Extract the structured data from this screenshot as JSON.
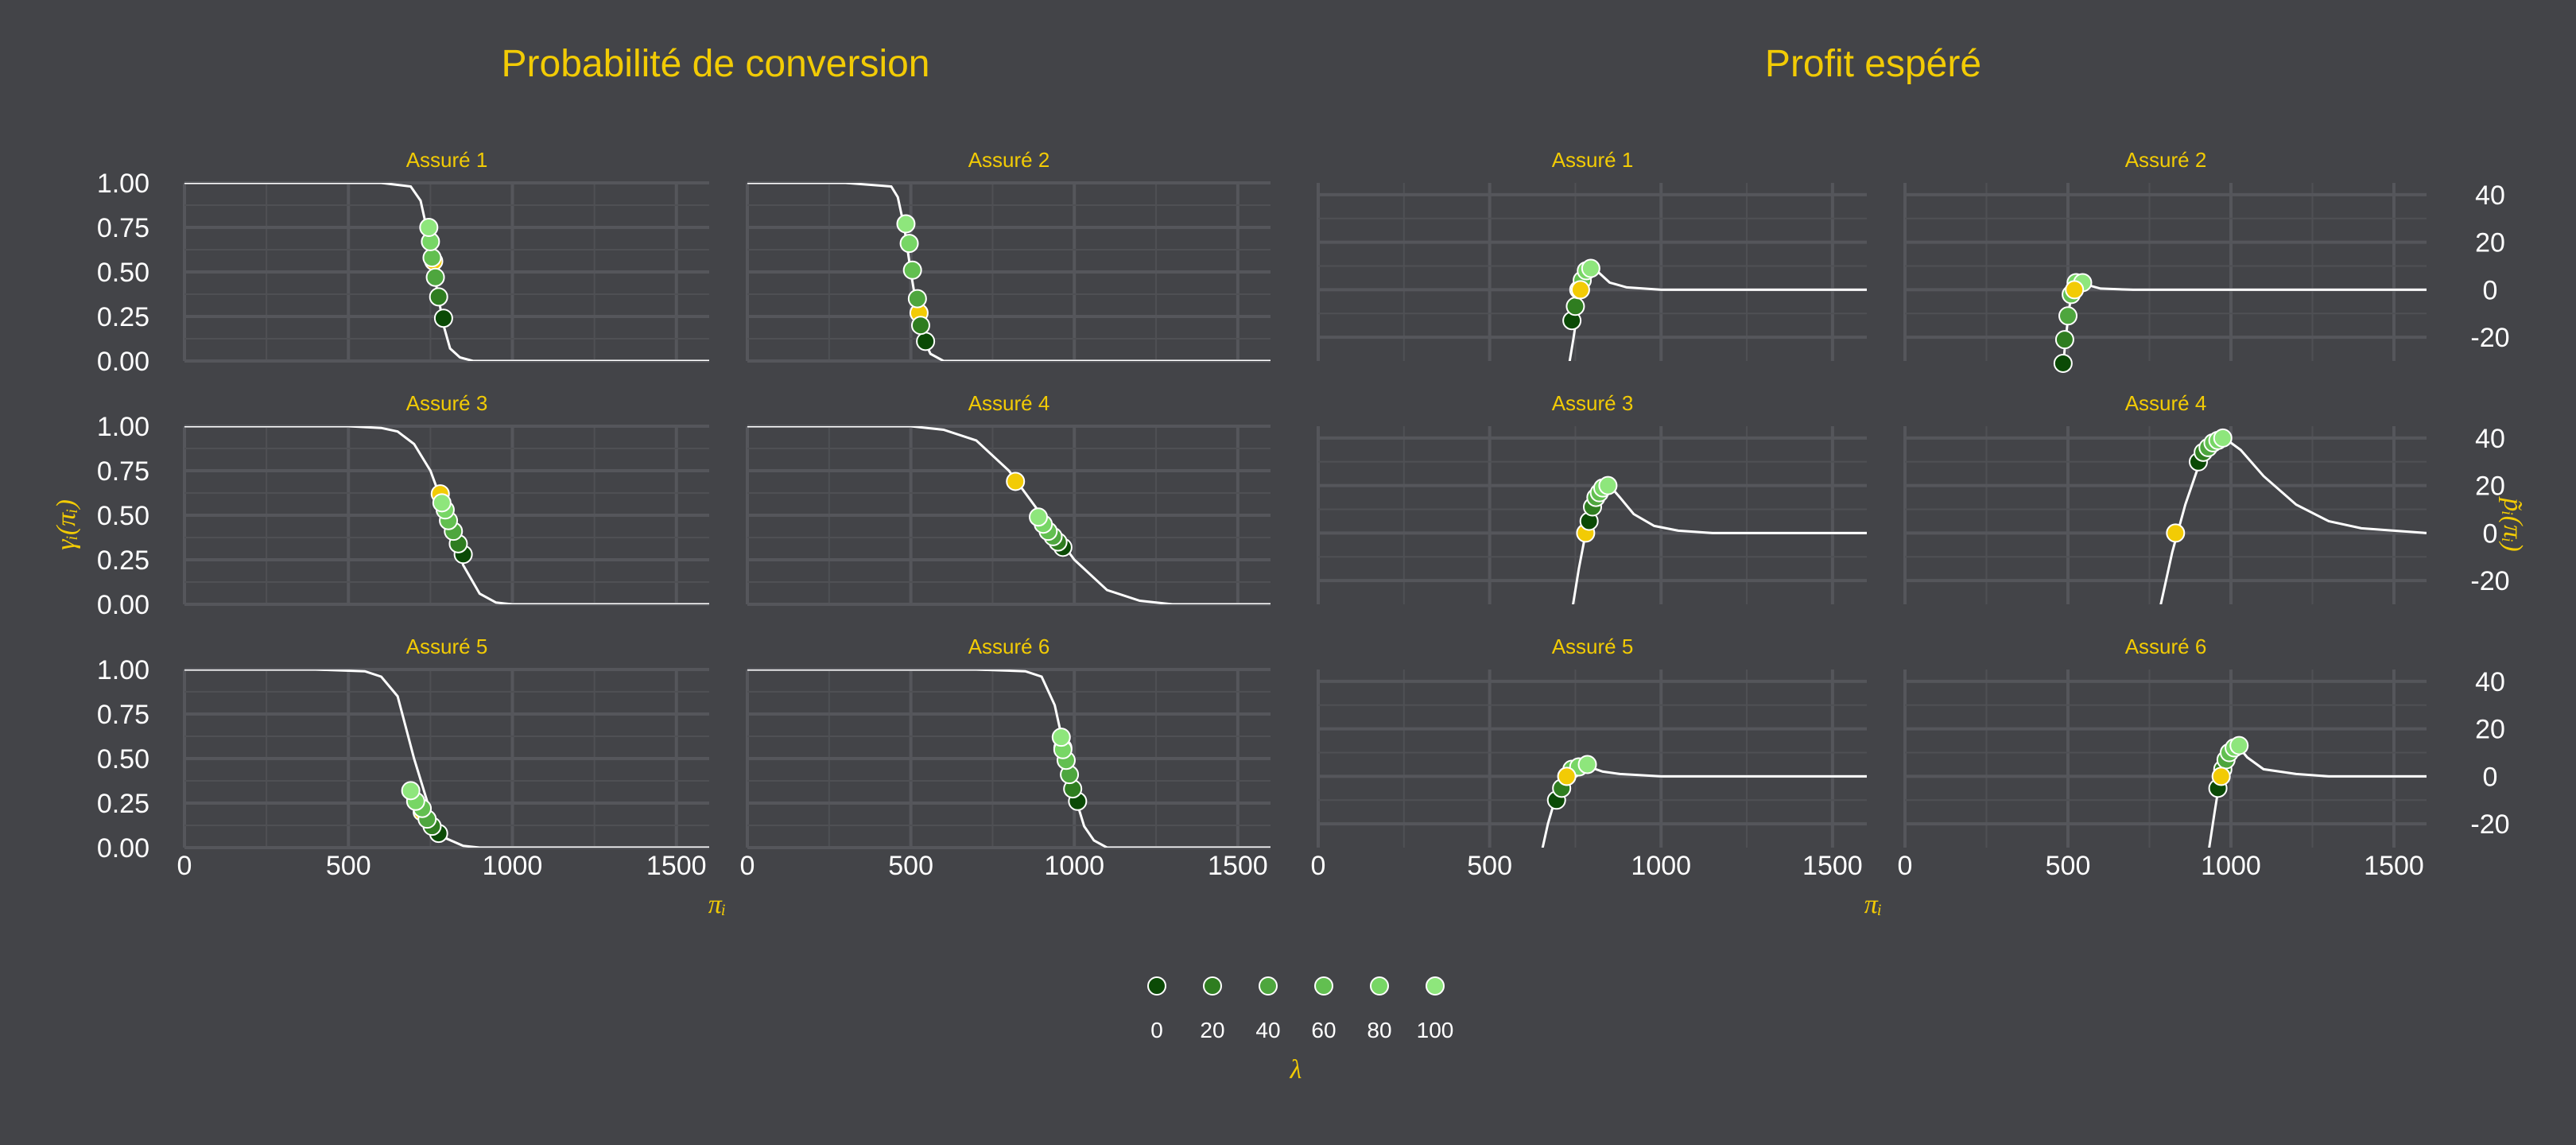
{
  "legend": {
    "title": "λ",
    "labels": [
      "0",
      "20",
      "40",
      "60",
      "80",
      "100"
    ],
    "colors": [
      "#0b4a06",
      "#2f7d20",
      "#4ea63e",
      "#62bf50",
      "#77d665",
      "#8ee67c"
    ]
  },
  "highlight_color": "#F2CB05",
  "curve_color": "#ffffff",
  "chart_data": [
    {
      "type": "line",
      "title": "Probabilité de conversion",
      "xlabel": "πᵢ",
      "ylabel": "γᵢ(πᵢ)",
      "xlim": [
        0,
        1600
      ],
      "ylim": [
        0,
        1
      ],
      "xticks": [
        "0",
        "500",
        "1000",
        "1500"
      ],
      "yticks": [
        "0.00",
        "0.25",
        "0.50",
        "0.75",
        "1.00"
      ],
      "panels": [
        {
          "strip": "Assuré 1",
          "curve": [
            [
              0,
              1
            ],
            [
              600,
              1
            ],
            [
              690,
              0.98
            ],
            [
              720,
              0.9
            ],
            [
              750,
              0.65
            ],
            [
              770,
              0.4
            ],
            [
              790,
              0.2
            ],
            [
              810,
              0.07
            ],
            [
              840,
              0.02
            ],
            [
              880,
              0
            ],
            [
              1600,
              0
            ]
          ],
          "points": [
            [
              790,
              0.24
            ],
            [
              775,
              0.36
            ],
            [
              765,
              0.47
            ],
            [
              755,
              0.58
            ],
            [
              750,
              0.67
            ],
            [
              745,
              0.75
            ]
          ],
          "highlight": [
            760,
            0.56
          ]
        },
        {
          "strip": "Assuré 2",
          "curve": [
            [
              0,
              1
            ],
            [
              300,
              1
            ],
            [
              440,
              0.98
            ],
            [
              460,
              0.92
            ],
            [
              480,
              0.75
            ],
            [
              500,
              0.5
            ],
            [
              520,
              0.28
            ],
            [
              540,
              0.12
            ],
            [
              560,
              0.04
            ],
            [
              600,
              0
            ],
            [
              1600,
              0
            ]
          ],
          "points": [
            [
              545,
              0.11
            ],
            [
              530,
              0.2
            ],
            [
              520,
              0.35
            ],
            [
              505,
              0.51
            ],
            [
              495,
              0.66
            ],
            [
              485,
              0.77
            ]
          ],
          "highlight": [
            525,
            0.27
          ]
        },
        {
          "strip": "Assuré 3",
          "curve": [
            [
              0,
              1
            ],
            [
              500,
              1
            ],
            [
              600,
              0.99
            ],
            [
              650,
              0.97
            ],
            [
              700,
              0.9
            ],
            [
              750,
              0.75
            ],
            [
              800,
              0.5
            ],
            [
              850,
              0.22
            ],
            [
              900,
              0.06
            ],
            [
              950,
              0.01
            ],
            [
              1000,
              0
            ],
            [
              1600,
              0
            ]
          ],
          "points": [
            [
              850,
              0.28
            ],
            [
              835,
              0.34
            ],
            [
              820,
              0.41
            ],
            [
              805,
              0.47
            ],
            [
              795,
              0.53
            ],
            [
              785,
              0.57
            ]
          ],
          "highlight": [
            780,
            0.62
          ]
        },
        {
          "strip": "Assuré 4",
          "curve": [
            [
              0,
              1
            ],
            [
              500,
              1
            ],
            [
              600,
              0.98
            ],
            [
              700,
              0.92
            ],
            [
              800,
              0.75
            ],
            [
              900,
              0.5
            ],
            [
              1000,
              0.25
            ],
            [
              1100,
              0.08
            ],
            [
              1200,
              0.02
            ],
            [
              1300,
              0
            ],
            [
              1600,
              0
            ]
          ],
          "points": [
            [
              965,
              0.32
            ],
            [
              950,
              0.35
            ],
            [
              935,
              0.38
            ],
            [
              920,
              0.41
            ],
            [
              905,
              0.45
            ],
            [
              890,
              0.49
            ]
          ],
          "highlight": [
            820,
            0.69
          ]
        },
        {
          "strip": "Assuré 5",
          "curve": [
            [
              0,
              1
            ],
            [
              400,
              1
            ],
            [
              550,
              0.99
            ],
            [
              600,
              0.96
            ],
            [
              650,
              0.85
            ],
            [
              700,
              0.5
            ],
            [
              750,
              0.2
            ],
            [
              800,
              0.05
            ],
            [
              850,
              0.01
            ],
            [
              900,
              0
            ],
            [
              1600,
              0
            ]
          ],
          "points": [
            [
              775,
              0.08
            ],
            [
              755,
              0.12
            ],
            [
              740,
              0.16
            ],
            [
              725,
              0.22
            ],
            [
              705,
              0.26
            ],
            [
              690,
              0.32
            ]
          ],
          "highlight": [
            725,
            0.2
          ]
        },
        {
          "strip": "Assuré 6",
          "curve": [
            [
              0,
              1
            ],
            [
              700,
              1
            ],
            [
              850,
              0.99
            ],
            [
              900,
              0.96
            ],
            [
              940,
              0.8
            ],
            [
              970,
              0.55
            ],
            [
              1000,
              0.3
            ],
            [
              1030,
              0.12
            ],
            [
              1060,
              0.04
            ],
            [
              1100,
              0
            ],
            [
              1600,
              0
            ]
          ],
          "points": [
            [
              1010,
              0.26
            ],
            [
              995,
              0.33
            ],
            [
              985,
              0.41
            ],
            [
              975,
              0.49
            ],
            [
              965,
              0.55
            ],
            [
              960,
              0.62
            ]
          ],
          "highlight": [
            965,
            0.56
          ]
        }
      ]
    },
    {
      "type": "line",
      "title": "Profit espéré",
      "xlabel": "πᵢ",
      "ylabel": "p̃ᵢ(πᵢ)",
      "xlim": [
        0,
        1600
      ],
      "ylim": [
        -30,
        45
      ],
      "xticks": [
        "0",
        "500",
        "1000",
        "1500"
      ],
      "yticks": [
        "-20",
        "0",
        "20",
        "40"
      ],
      "panels": [
        {
          "strip": "Assuré 1",
          "curve": [
            [
              730,
              -33
            ],
            [
              745,
              -20
            ],
            [
              760,
              -5
            ],
            [
              775,
              4
            ],
            [
              790,
              8
            ],
            [
              800,
              10
            ],
            [
              820,
              7
            ],
            [
              850,
              3
            ],
            [
              900,
              1
            ],
            [
              1000,
              0
            ],
            [
              1600,
              0
            ]
          ],
          "points": [
            [
              740,
              -13
            ],
            [
              750,
              -7
            ],
            [
              760,
              0
            ],
            [
              770,
              4
            ],
            [
              782,
              8
            ],
            [
              795,
              9
            ]
          ],
          "highlight": [
            765,
            0
          ],
          "highlight_on_top": true
        },
        {
          "strip": "Assuré 2",
          "curve": [
            [
              485,
              -33
            ],
            [
              490,
              -25
            ],
            [
              500,
              -12
            ],
            [
              510,
              -2
            ],
            [
              520,
              3
            ],
            [
              540,
              4
            ],
            [
              560,
              2
            ],
            [
              600,
              0.5
            ],
            [
              700,
              0
            ],
            [
              1600,
              0
            ]
          ],
          "points": [
            [
              485,
              -31
            ],
            [
              490,
              -21
            ],
            [
              500,
              -11
            ],
            [
              510,
              -2
            ],
            [
              525,
              3
            ],
            [
              545,
              3
            ]
          ],
          "highlight": [
            520,
            0
          ],
          "highlight_on_top": true
        },
        {
          "strip": "Assuré 3",
          "curve": [
            [
              740,
              -33
            ],
            [
              760,
              -15
            ],
            [
              780,
              0
            ],
            [
              800,
              10
            ],
            [
              820,
              16
            ],
            [
              850,
              20
            ],
            [
              880,
              15
            ],
            [
              920,
              8
            ],
            [
              980,
              3
            ],
            [
              1050,
              1
            ],
            [
              1150,
              0
            ],
            [
              1600,
              0
            ]
          ],
          "points": [
            [
              790,
              5
            ],
            [
              800,
              11
            ],
            [
              810,
              15
            ],
            [
              820,
              17
            ],
            [
              830,
              19
            ],
            [
              845,
              20
            ]
          ],
          "highlight": [
            780,
            0
          ]
        },
        {
          "strip": "Assuré 4",
          "curve": [
            [
              780,
              -33
            ],
            [
              820,
              -8
            ],
            [
              860,
              12
            ],
            [
              900,
              28
            ],
            [
              940,
              37
            ],
            [
              980,
              40
            ],
            [
              1030,
              35
            ],
            [
              1100,
              24
            ],
            [
              1200,
              12
            ],
            [
              1300,
              5
            ],
            [
              1400,
              2
            ],
            [
              1500,
              1
            ],
            [
              1600,
              0
            ]
          ],
          "points": [
            [
              900,
              30
            ],
            [
              915,
              34
            ],
            [
              930,
              36
            ],
            [
              945,
              38
            ],
            [
              960,
              39
            ],
            [
              975,
              40
            ]
          ],
          "highlight": [
            830,
            0
          ]
        },
        {
          "strip": "Assuré 5",
          "curve": [
            [
              650,
              -33
            ],
            [
              670,
              -20
            ],
            [
              690,
              -10
            ],
            [
              710,
              -2
            ],
            [
              730,
              2
            ],
            [
              760,
              4
            ],
            [
              790,
              4
            ],
            [
              830,
              2
            ],
            [
              880,
              1
            ],
            [
              1000,
              0
            ],
            [
              1600,
              0
            ]
          ],
          "points": [
            [
              695,
              -10
            ],
            [
              710,
              -5
            ],
            [
              725,
              0
            ],
            [
              740,
              3
            ],
            [
              760,
              4
            ],
            [
              785,
              5
            ]
          ],
          "highlight": [
            725,
            0
          ],
          "highlight_on_top": true
        },
        {
          "strip": "Assuré 6",
          "curve": [
            [
              930,
              -33
            ],
            [
              950,
              -15
            ],
            [
              965,
              -2
            ],
            [
              980,
              5
            ],
            [
              1000,
              11
            ],
            [
              1020,
              13
            ],
            [
              1050,
              8
            ],
            [
              1100,
              3
            ],
            [
              1200,
              1
            ],
            [
              1300,
              0
            ],
            [
              1600,
              0
            ]
          ],
          "points": [
            [
              960,
              -5
            ],
            [
              975,
              3
            ],
            [
              985,
              7
            ],
            [
              995,
              10
            ],
            [
              1010,
              12
            ],
            [
              1025,
              13
            ]
          ],
          "highlight": [
            970,
            0
          ],
          "highlight_on_top": true
        }
      ]
    }
  ]
}
